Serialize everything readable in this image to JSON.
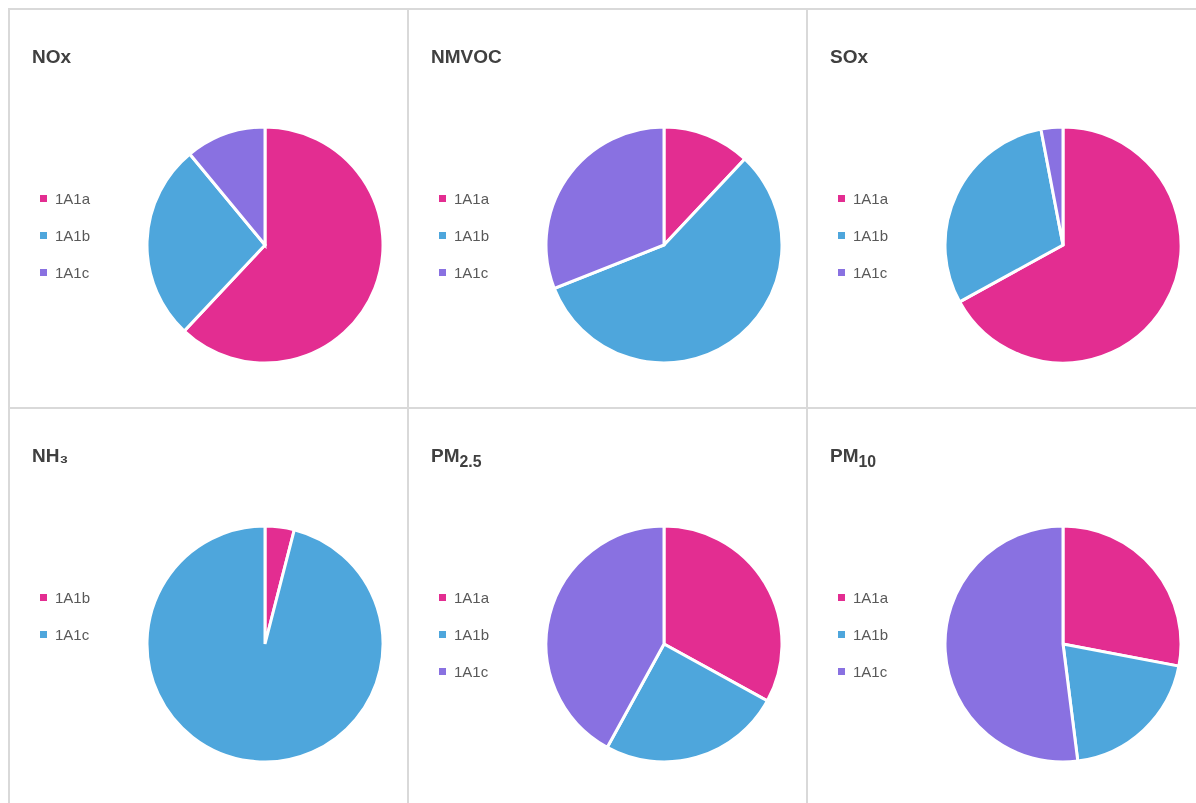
{
  "chart_data": [
    {
      "type": "pie",
      "title": "NOx",
      "categories": [
        "1A1a",
        "1A1b",
        "1A1c"
      ],
      "values": [
        62,
        27,
        11
      ],
      "colors": [
        "#e32d91",
        "#4ea6dc",
        "#8971e1"
      ],
      "legend": "left"
    },
    {
      "type": "pie",
      "title": "NMVOC",
      "categories": [
        "1A1a",
        "1A1b",
        "1A1c"
      ],
      "values": [
        12,
        57,
        31
      ],
      "colors": [
        "#e32d91",
        "#4ea6dc",
        "#8971e1"
      ],
      "legend": "left"
    },
    {
      "type": "pie",
      "title": "SOx",
      "categories": [
        "1A1a",
        "1A1b",
        "1A1c"
      ],
      "values": [
        67,
        30,
        3
      ],
      "colors": [
        "#e32d91",
        "#4ea6dc",
        "#8971e1"
      ],
      "legend": "left"
    },
    {
      "type": "pie",
      "title": "NH₃",
      "categories": [
        "1A1b",
        "1A1c"
      ],
      "values": [
        4,
        96
      ],
      "colors": [
        "#e32d91",
        "#4ea6dc"
      ],
      "legend": "left"
    },
    {
      "type": "pie",
      "title": "PM$_{2.5}$",
      "categories": [
        "1A1a",
        "1A1b",
        "1A1c"
      ],
      "values": [
        33,
        25,
        42
      ],
      "colors": [
        "#e32d91",
        "#4ea6dc",
        "#8971e1"
      ],
      "legend": "left"
    },
    {
      "type": "pie",
      "title": "PM$_{10}$",
      "categories": [
        "1A1a",
        "1A1b",
        "1A1c"
      ],
      "values": [
        28,
        20,
        52
      ],
      "colors": [
        "#e32d91",
        "#4ea6dc",
        "#8971e1"
      ],
      "legend": "left"
    }
  ]
}
